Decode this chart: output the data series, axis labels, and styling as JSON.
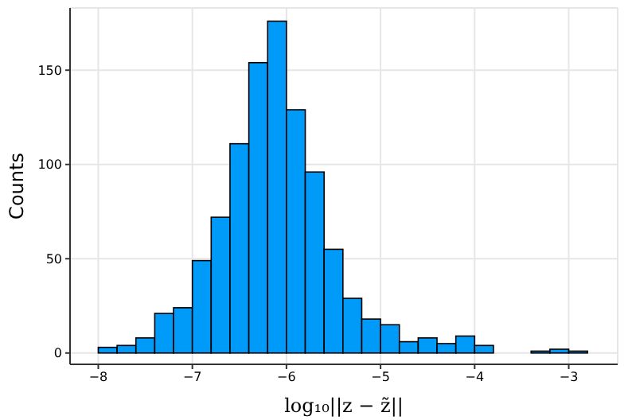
{
  "chart_data": {
    "type": "histogram",
    "xlabel": "log₁₀||z − z̃||",
    "ylabel": "Counts",
    "color": "#009af9",
    "bins": [
      -8,
      -7.8,
      -7.6,
      -7.4,
      -7.2,
      -7,
      -6.8,
      -6.6,
      -6.4,
      -6.2,
      -6,
      -5.8,
      -5.6,
      -5.4,
      -5.2,
      -5,
      -4.8,
      -4.6,
      -4.4,
      -4.2,
      -4,
      -3.8,
      -3.6,
      -3.4,
      -3.2,
      -3,
      -2.8
    ],
    "values": [
      3,
      4,
      8,
      21,
      24,
      49,
      72,
      111,
      154,
      176,
      129,
      96,
      55,
      29,
      18,
      15,
      6,
      8,
      5,
      9,
      4,
      0,
      0,
      1,
      2,
      1
    ],
    "xlim": [
      -8.3,
      -2.48
    ],
    "ylim": [
      -6,
      183
    ],
    "xticks": [
      {
        "value": -8,
        "label": "−8"
      },
      {
        "value": -7,
        "label": "−7"
      },
      {
        "value": -6,
        "label": "−6"
      },
      {
        "value": -5,
        "label": "−5"
      },
      {
        "value": -4,
        "label": "−4"
      },
      {
        "value": -3,
        "label": "−3"
      }
    ],
    "yticks": [
      0,
      50,
      100,
      150
    ],
    "grid": true,
    "legend": false
  }
}
